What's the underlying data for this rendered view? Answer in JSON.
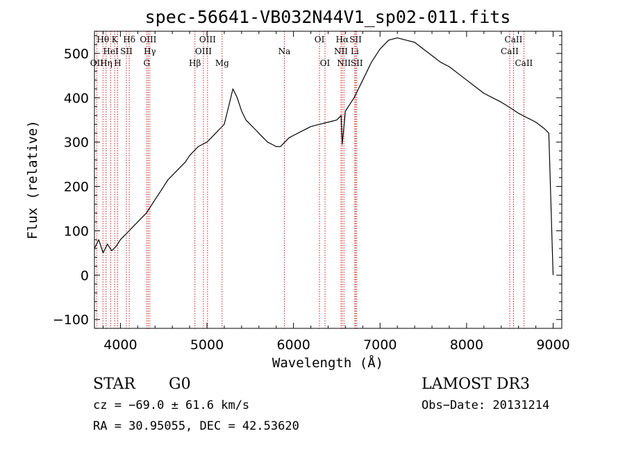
{
  "chart_data": {
    "type": "line",
    "title": "spec-56641-VB032N44V1_sp02-011.fits",
    "xlabel": "Wavelength (Å)",
    "ylabel": "Flux (relative)",
    "xlim": [
      3700,
      9100
    ],
    "ylim": [
      -120,
      550
    ],
    "x_ticks": [
      4000,
      5000,
      6000,
      7000,
      8000,
      9000
    ],
    "x_tick_labels": [
      "4000",
      "5000",
      "6000",
      "7000",
      "8000",
      "9000"
    ],
    "y_ticks": [
      -100,
      0,
      100,
      200,
      300,
      400,
      500
    ],
    "y_tick_labels": [
      "−100",
      "0",
      "100",
      "200",
      "300",
      "400",
      "500"
    ],
    "grid": false,
    "series": [
      {
        "name": "spectrum",
        "color": "#000000",
        "x": [
          3700,
          3750,
          3800,
          3850,
          3900,
          3950,
          4000,
          4050,
          4100,
          4150,
          4200,
          4250,
          4300,
          4350,
          4400,
          4450,
          4500,
          4550,
          4600,
          4650,
          4700,
          4750,
          4800,
          4850,
          4900,
          4950,
          5000,
          5050,
          5100,
          5150,
          5200,
          5250,
          5300,
          5350,
          5400,
          5450,
          5500,
          5550,
          5600,
          5650,
          5700,
          5750,
          5800,
          5850,
          5900,
          5950,
          6000,
          6100,
          6200,
          6300,
          6400,
          6500,
          6550,
          6563,
          6600,
          6700,
          6800,
          6900,
          7000,
          7100,
          7200,
          7300,
          7400,
          7500,
          7600,
          7700,
          7800,
          7900,
          8000,
          8100,
          8200,
          8300,
          8400,
          8500,
          8600,
          8700,
          8800,
          8900,
          8950,
          8990,
          9000
        ],
        "y": [
          60,
          80,
          50,
          70,
          55,
          65,
          80,
          90,
          100,
          110,
          120,
          130,
          140,
          155,
          170,
          185,
          200,
          215,
          225,
          235,
          245,
          255,
          270,
          280,
          290,
          295,
          300,
          310,
          320,
          330,
          340,
          380,
          420,
          400,
          370,
          350,
          340,
          330,
          320,
          310,
          300,
          295,
          290,
          290,
          300,
          310,
          315,
          325,
          335,
          340,
          345,
          350,
          360,
          295,
          370,
          400,
          440,
          480,
          510,
          530,
          535,
          530,
          525,
          510,
          495,
          480,
          470,
          455,
          440,
          425,
          410,
          400,
          390,
          378,
          365,
          355,
          345,
          330,
          320,
          60,
          0
        ]
      }
    ],
    "line_markers": [
      {
        "label": "Hθ",
        "x": 3798,
        "row": 0
      },
      {
        "label": "OII",
        "x": 3727,
        "row": 2
      },
      {
        "label": "Hη",
        "x": 3835,
        "row": 2
      },
      {
        "label": "HeI",
        "x": 3889,
        "row": 1
      },
      {
        "label": "K",
        "x": 3934,
        "row": 0
      },
      {
        "label": "H",
        "x": 3969,
        "row": 2
      },
      {
        "label": "SII",
        "x": 4069,
        "row": 1
      },
      {
        "label": "Hδ",
        "x": 4102,
        "row": 0
      },
      {
        "label": "G",
        "x": 4304,
        "row": 2
      },
      {
        "label": "OIII",
        "x": 4321,
        "row": 0
      },
      {
        "label": "Hγ",
        "x": 4340,
        "row": 1
      },
      {
        "label": "Hβ",
        "x": 4861,
        "row": 2
      },
      {
        "label": "OIII",
        "x": 4959,
        "row": 1
      },
      {
        "label": "OIII",
        "x": 5007,
        "row": 0
      },
      {
        "label": "Mg",
        "x": 5175,
        "row": 2
      },
      {
        "label": "Na",
        "x": 5894,
        "row": 1
      },
      {
        "label": "OI",
        "x": 6300,
        "row": 0
      },
      {
        "label": "OI",
        "x": 6364,
        "row": 2
      },
      {
        "label": "NII",
        "x": 6548,
        "row": 1
      },
      {
        "label": "Hα",
        "x": 6563,
        "row": 0
      },
      {
        "label": "NII",
        "x": 6583,
        "row": 2
      },
      {
        "label": "Li",
        "x": 6708,
        "row": 1
      },
      {
        "label": "SII",
        "x": 6717,
        "row": 0
      },
      {
        "label": "SII",
        "x": 6731,
        "row": 2
      },
      {
        "label": "CaII",
        "x": 8498,
        "row": 1
      },
      {
        "label": "CaII",
        "x": 8542,
        "row": 0
      },
      {
        "label": "CaII",
        "x": 8662,
        "row": 2
      }
    ]
  },
  "info": {
    "object_class": "STAR",
    "subclass": "G0",
    "survey": "LAMOST DR3",
    "velocity": "cz = −69.0 ± 61.6 km/s",
    "obs_date": "Obs−Date: 20131214",
    "coords": "RA =  30.95055, DEC =  42.53620"
  },
  "colors": {
    "spectrum": "#000000",
    "marker_line": "#cc0000",
    "axes": "#000000"
  }
}
